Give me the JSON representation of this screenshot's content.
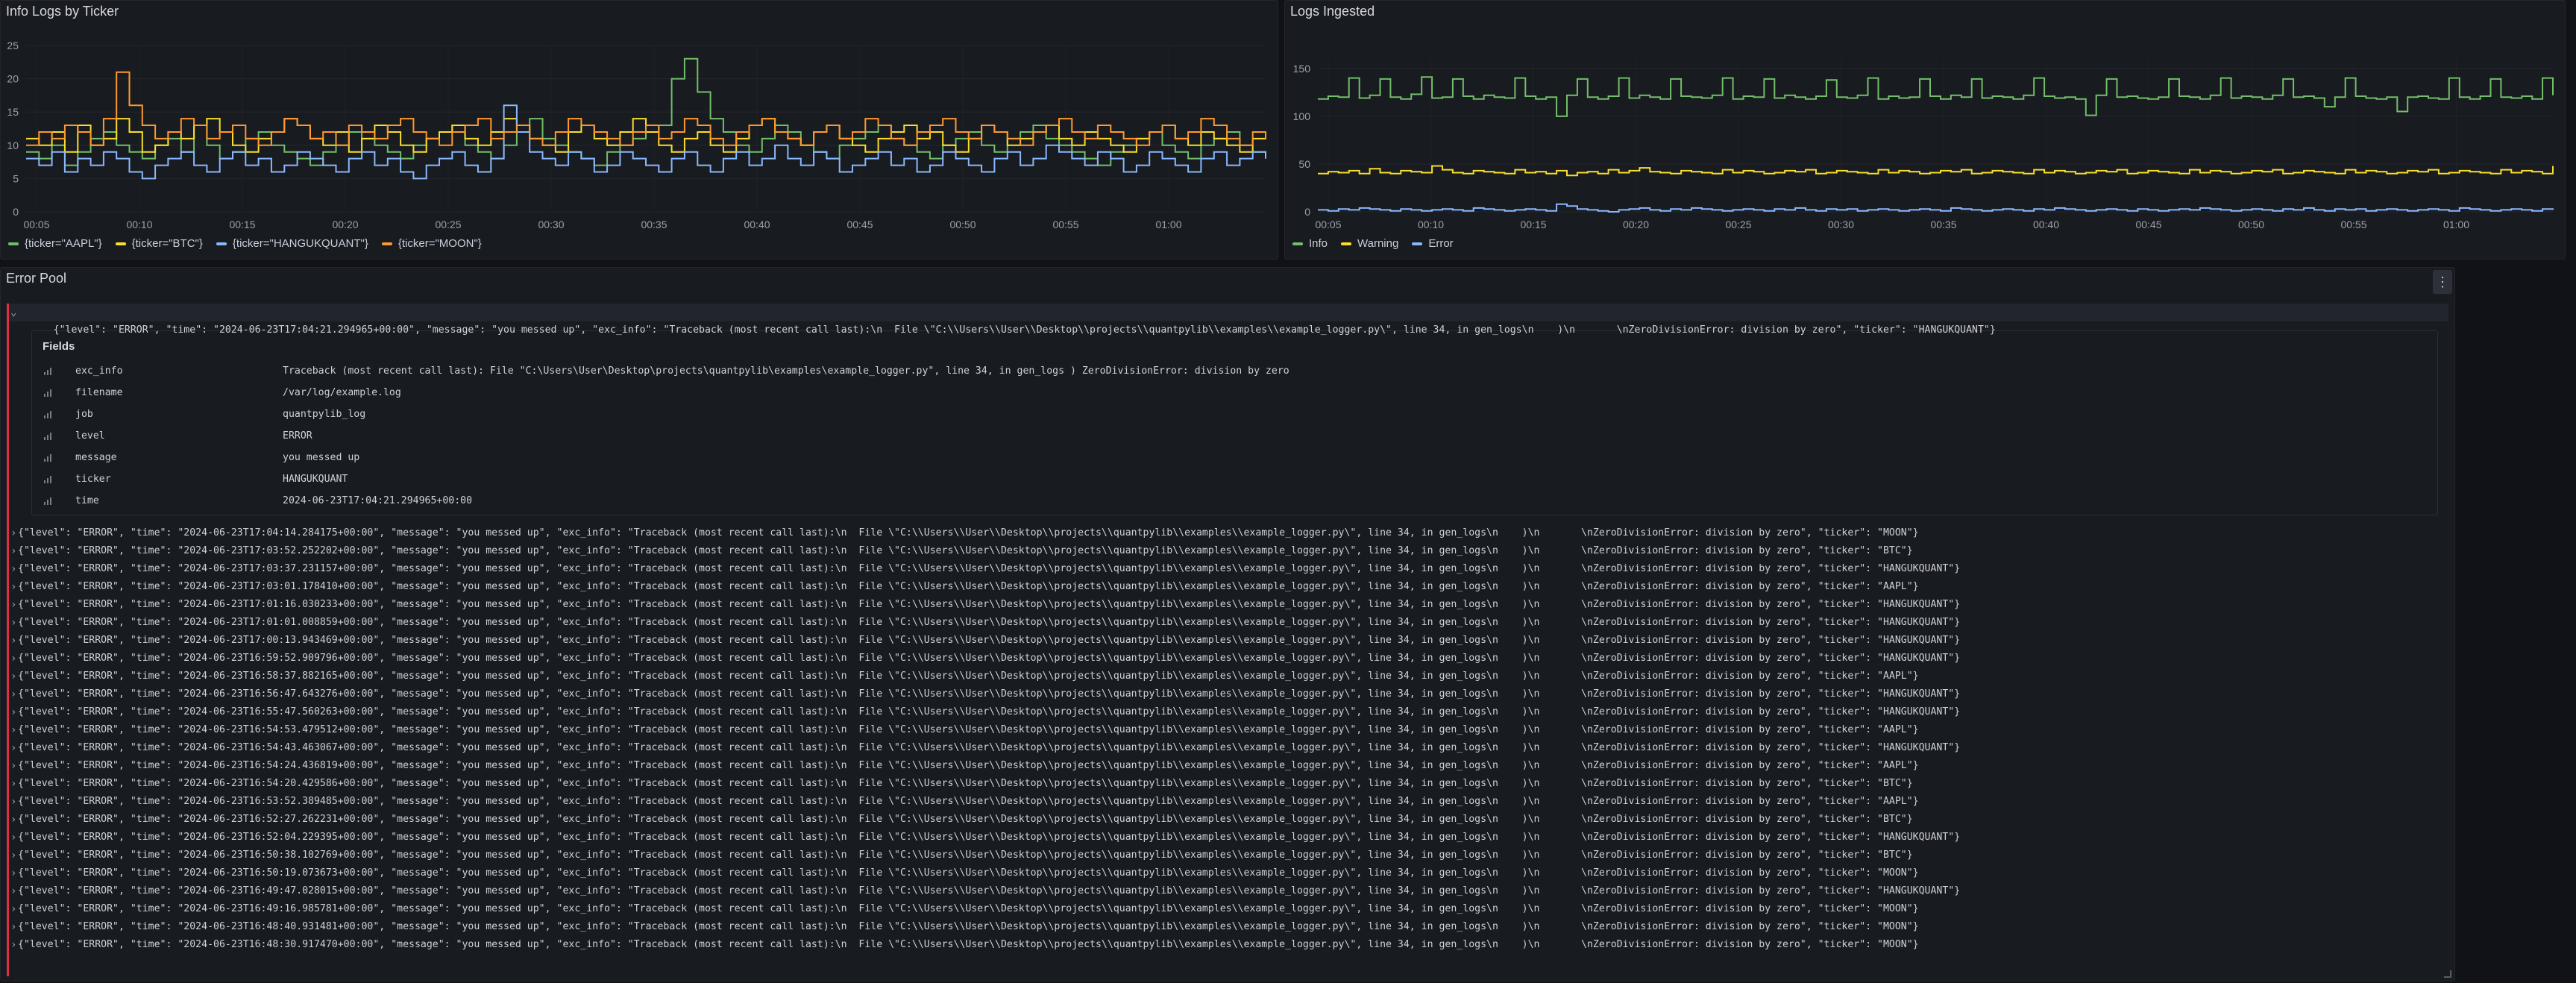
{
  "panels": {
    "left": {
      "title": "Info Logs by Ticker",
      "legend": [
        {
          "label": "{ticker=\"AAPL\"}",
          "color": "#73bf69"
        },
        {
          "label": "{ticker=\"BTC\"}",
          "color": "#fade2a"
        },
        {
          "label": "{ticker=\"HANGUKQUANT\"}",
          "color": "#8ab8ff"
        },
        {
          "label": "{ticker=\"MOON\"}",
          "color": "#ff9830"
        }
      ]
    },
    "right": {
      "title": "Logs Ingested",
      "legend": [
        {
          "label": "Info",
          "color": "#73bf69"
        },
        {
          "label": "Warning",
          "color": "#fade2a"
        },
        {
          "label": "Error",
          "color": "#8ab8ff"
        }
      ]
    },
    "pool": {
      "title": "Error Pool",
      "menu_icon": "kebab-menu-icon",
      "expanded_line": "{\"level\": \"ERROR\", \"time\": \"2024-06-23T17:04:21.294965+00:00\", \"message\": \"you messed up\", \"exc_info\": \"Traceback (most recent call last):\\n  File \\\"C:\\\\Users\\\\User\\\\Desktop\\\\projects\\\\quantpylib\\\\examples\\\\example_logger.py\\\", line 34, in gen_logs\\n    )\\n       \\nZeroDivisionError: division by zero\", \"ticker\": \"HANGUKQUANT\"}",
      "fields_title": "Fields",
      "fields": [
        {
          "key": "exc_info",
          "value": "Traceback (most recent call last): File \"C:\\Users\\User\\Desktop\\projects\\quantpylib\\examples\\example_logger.py\", line 34, in gen_logs ) ZeroDivisionError: division by zero"
        },
        {
          "key": "filename",
          "value": "/var/log/example.log"
        },
        {
          "key": "job",
          "value": "quantpylib_log"
        },
        {
          "key": "level",
          "value": "ERROR"
        },
        {
          "key": "message",
          "value": "you messed up"
        },
        {
          "key": "ticker",
          "value": "HANGUKQUANT"
        },
        {
          "key": "time",
          "value": "2024-06-23T17:04:21.294965+00:00"
        }
      ],
      "entries": [
        {
          "time": "2024-06-23T17:04:14.284175+00:00",
          "ticker": "MOON"
        },
        {
          "time": "2024-06-23T17:03:52.252202+00:00",
          "ticker": "BTC"
        },
        {
          "time": "2024-06-23T17:03:37.231157+00:00",
          "ticker": "HANGUKQUANT"
        },
        {
          "time": "2024-06-23T17:03:01.178410+00:00",
          "ticker": "AAPL"
        },
        {
          "time": "2024-06-23T17:01:16.030233+00:00",
          "ticker": "HANGUKQUANT"
        },
        {
          "time": "2024-06-23T17:01:01.008859+00:00",
          "ticker": "HANGUKQUANT"
        },
        {
          "time": "2024-06-23T17:00:13.943469+00:00",
          "ticker": "HANGUKQUANT"
        },
        {
          "time": "2024-06-23T16:59:52.909796+00:00",
          "ticker": "HANGUKQUANT"
        },
        {
          "time": "2024-06-23T16:58:37.882165+00:00",
          "ticker": "AAPL"
        },
        {
          "time": "2024-06-23T16:56:47.643276+00:00",
          "ticker": "HANGUKQUANT"
        },
        {
          "time": "2024-06-23T16:55:47.560263+00:00",
          "ticker": "HANGUKQUANT"
        },
        {
          "time": "2024-06-23T16:54:53.479512+00:00",
          "ticker": "AAPL"
        },
        {
          "time": "2024-06-23T16:54:43.463067+00:00",
          "ticker": "HANGUKQUANT"
        },
        {
          "time": "2024-06-23T16:54:24.436819+00:00",
          "ticker": "AAPL"
        },
        {
          "time": "2024-06-23T16:54:20.429586+00:00",
          "ticker": "BTC"
        },
        {
          "time": "2024-06-23T16:53:52.389485+00:00",
          "ticker": "AAPL"
        },
        {
          "time": "2024-06-23T16:52:27.262231+00:00",
          "ticker": "BTC"
        },
        {
          "time": "2024-06-23T16:52:04.229395+00:00",
          "ticker": "HANGUKQUANT"
        },
        {
          "time": "2024-06-23T16:50:38.102769+00:00",
          "ticker": "BTC"
        },
        {
          "time": "2024-06-23T16:50:19.073673+00:00",
          "ticker": "MOON"
        },
        {
          "time": "2024-06-23T16:49:47.028015+00:00",
          "ticker": "HANGUKQUANT"
        },
        {
          "time": "2024-06-23T16:49:16.985781+00:00",
          "ticker": "MOON"
        },
        {
          "time": "2024-06-23T16:48:40.931481+00:00",
          "ticker": "MOON"
        },
        {
          "time": "2024-06-23T16:48:30.917470+00:00",
          "ticker": "MOON"
        }
      ]
    }
  },
  "chart_data": [
    {
      "type": "line",
      "title": "Info Logs by Ticker",
      "ylim": [
        0,
        25
      ],
      "yticks": [
        "0",
        "5",
        "10",
        "15",
        "20",
        "25"
      ],
      "xticks": [
        "00:05",
        "00:10",
        "00:15",
        "00:20",
        "00:25",
        "00:30",
        "00:35",
        "00:40",
        "00:45",
        "00:50",
        "00:55",
        "01:00"
      ],
      "series": [
        {
          "name": "{ticker=\"AAPL\"}",
          "color": "#73bf69",
          "values": [
            9,
            8,
            10,
            7,
            9,
            11,
            12,
            10,
            9,
            8,
            10,
            11,
            9,
            13,
            10,
            8,
            9,
            11,
            12,
            10,
            9,
            8,
            7,
            9,
            10,
            12,
            11,
            10,
            9,
            8,
            10,
            11,
            12,
            13,
            10,
            9,
            8,
            10,
            12,
            14,
            11,
            10,
            9,
            8,
            7,
            9,
            10,
            11,
            12,
            13,
            20,
            23,
            18,
            14,
            12,
            10,
            9,
            11,
            13,
            12,
            10,
            9,
            8,
            10,
            11,
            12,
            13,
            11,
            10,
            9,
            8,
            10,
            11,
            12,
            10,
            9,
            11,
            12,
            13,
            11,
            10,
            9,
            8,
            7,
            9,
            10,
            11,
            12,
            10,
            9,
            8,
            10,
            11,
            12,
            10,
            9,
            8
          ]
        },
        {
          "name": "{ticker=\"BTC\"}",
          "color": "#fade2a",
          "values": [
            11,
            10,
            12,
            9,
            13,
            10,
            11,
            14,
            12,
            9,
            10,
            12,
            11,
            13,
            14,
            12,
            10,
            9,
            11,
            12,
            14,
            13,
            11,
            10,
            12,
            9,
            11,
            13,
            12,
            10,
            9,
            11,
            12,
            13,
            11,
            10,
            12,
            14,
            13,
            11,
            10,
            9,
            12,
            13,
            11,
            10,
            12,
            14,
            12,
            10,
            9,
            11,
            12,
            10,
            9,
            11,
            13,
            14,
            12,
            11,
            10,
            12,
            13,
            11,
            10,
            9,
            11,
            12,
            13,
            11,
            12,
            10,
            9,
            11,
            13,
            12,
            10,
            11,
            12,
            13,
            11,
            10,
            12,
            11,
            10,
            9,
            11,
            12,
            13,
            11,
            10,
            12,
            11,
            10,
            9,
            11,
            12
          ]
        },
        {
          "name": "{ticker=\"HANGUKQUANT\"}",
          "color": "#8ab8ff",
          "values": [
            8,
            7,
            9,
            6,
            8,
            7,
            9,
            8,
            6,
            5,
            7,
            8,
            9,
            7,
            6,
            8,
            9,
            7,
            8,
            6,
            7,
            9,
            8,
            7,
            6,
            8,
            9,
            7,
            8,
            6,
            5,
            7,
            8,
            9,
            7,
            6,
            8,
            16,
            12,
            9,
            8,
            7,
            9,
            8,
            6,
            7,
            9,
            8,
            7,
            6,
            8,
            9,
            7,
            6,
            8,
            9,
            7,
            8,
            10,
            8,
            7,
            9,
            8,
            6,
            7,
            8,
            9,
            7,
            8,
            6,
            7,
            9,
            8,
            7,
            6,
            8,
            9,
            7,
            8,
            10,
            9,
            8,
            7,
            9,
            8,
            6,
            7,
            9,
            8,
            7,
            6,
            8,
            9,
            7,
            8,
            9,
            8
          ]
        },
        {
          "name": "{ticker=\"MOON\"}",
          "color": "#ff9830",
          "values": [
            10,
            12,
            11,
            13,
            12,
            10,
            14,
            21,
            16,
            13,
            11,
            12,
            14,
            13,
            11,
            12,
            13,
            11,
            10,
            12,
            14,
            13,
            11,
            12,
            10,
            13,
            12,
            11,
            13,
            14,
            12,
            11,
            10,
            12,
            13,
            14,
            11,
            12,
            13,
            11,
            10,
            12,
            14,
            13,
            12,
            11,
            10,
            12,
            13,
            11,
            12,
            14,
            13,
            11,
            10,
            12,
            13,
            14,
            12,
            11,
            10,
            12,
            13,
            11,
            12,
            14,
            13,
            11,
            10,
            12,
            13,
            14,
            12,
            11,
            13,
            12,
            11,
            10,
            12,
            13,
            14,
            12,
            11,
            13,
            12,
            11,
            10,
            12,
            13,
            11,
            12,
            14,
            13,
            11,
            10,
            12,
            11
          ]
        }
      ]
    },
    {
      "type": "line",
      "title": "Logs Ingested",
      "ylim": [
        0,
        160
      ],
      "yticks": [
        "0",
        "50",
        "100",
        "150"
      ],
      "xticks": [
        "00:05",
        "00:10",
        "00:15",
        "00:20",
        "00:25",
        "00:30",
        "00:35",
        "00:40",
        "00:45",
        "00:50",
        "00:55",
        "01:00"
      ],
      "series": [
        {
          "name": "Info",
          "color": "#73bf69",
          "values": [
            118,
            121,
            120,
            140,
            119,
            122,
            139,
            120,
            118,
            123,
            141,
            119,
            120,
            139,
            121,
            118,
            122,
            120,
            119,
            140,
            121,
            118,
            120,
            100,
            122,
            139,
            120,
            118,
            121,
            140,
            119,
            122,
            120,
            118,
            139,
            121,
            120,
            119,
            122,
            140,
            118,
            121,
            120,
            139,
            119,
            122,
            120,
            118,
            121,
            138,
            120,
            119,
            122,
            140,
            118,
            121,
            119,
            120,
            139,
            121,
            118,
            122,
            120,
            139,
            119,
            121,
            120,
            118,
            122,
            140,
            121,
            119,
            120,
            118,
            101,
            122,
            139,
            120,
            121,
            119,
            118,
            120,
            139,
            121,
            120,
            118,
            122,
            140,
            119,
            121,
            120,
            118,
            122,
            139,
            120,
            121,
            119,
            110,
            120,
            140,
            121,
            119,
            118,
            120,
            105,
            120,
            121,
            119,
            118,
            140,
            120,
            118,
            121,
            139,
            120,
            119,
            121,
            118,
            140,
            122
          ]
        },
        {
          "name": "Warning",
          "color": "#fade2a",
          "values": [
            40,
            42,
            41,
            43,
            40,
            45,
            41,
            40,
            43,
            42,
            41,
            48,
            44,
            41,
            40,
            43,
            42,
            41,
            40,
            44,
            41,
            42,
            40,
            43,
            38,
            41,
            42,
            40,
            44,
            41,
            43,
            46,
            42,
            41,
            40,
            43,
            42,
            41,
            40,
            44,
            41,
            43,
            42,
            40,
            41,
            43,
            42,
            44,
            40,
            41,
            43,
            42,
            41,
            40,
            44,
            41,
            43,
            42,
            40,
            41,
            43,
            42,
            44,
            40,
            41,
            43,
            42,
            41,
            40,
            44,
            41,
            43,
            42,
            40,
            41,
            43,
            42,
            44,
            40,
            41,
            43,
            42,
            41,
            40,
            44,
            41,
            43,
            42,
            40,
            41,
            43,
            42,
            44,
            40,
            41,
            43,
            42,
            41,
            40,
            44,
            41,
            43,
            42,
            40,
            41,
            43,
            42,
            44,
            40,
            41,
            43,
            42,
            41,
            40,
            44,
            41,
            43,
            42,
            40,
            48
          ]
        },
        {
          "name": "Error",
          "color": "#8ab8ff",
          "values": [
            2,
            1,
            3,
            2,
            4,
            3,
            2,
            1,
            3,
            2,
            1,
            2,
            3,
            2,
            1,
            4,
            3,
            2,
            1,
            2,
            3,
            2,
            1,
            8,
            6,
            3,
            2,
            1,
            0,
            2,
            3,
            4,
            2,
            1,
            3,
            2,
            4,
            3,
            2,
            1,
            2,
            3,
            2,
            1,
            3,
            2,
            4,
            2,
            1,
            3,
            2,
            3,
            1,
            2,
            3,
            2,
            1,
            2,
            3,
            2,
            1,
            4,
            3,
            2,
            1,
            2,
            3,
            2,
            1,
            3,
            2,
            4,
            3,
            2,
            1,
            2,
            3,
            2,
            1,
            3,
            2,
            1,
            2,
            3,
            2,
            4,
            3,
            2,
            1,
            2,
            3,
            2,
            1,
            3,
            2,
            4,
            2,
            1,
            3,
            2,
            3,
            1,
            2,
            3,
            2,
            1,
            2,
            3,
            2,
            1,
            4,
            3,
            2,
            1,
            2,
            3,
            2,
            1,
            3,
            2
          ]
        }
      ]
    }
  ]
}
